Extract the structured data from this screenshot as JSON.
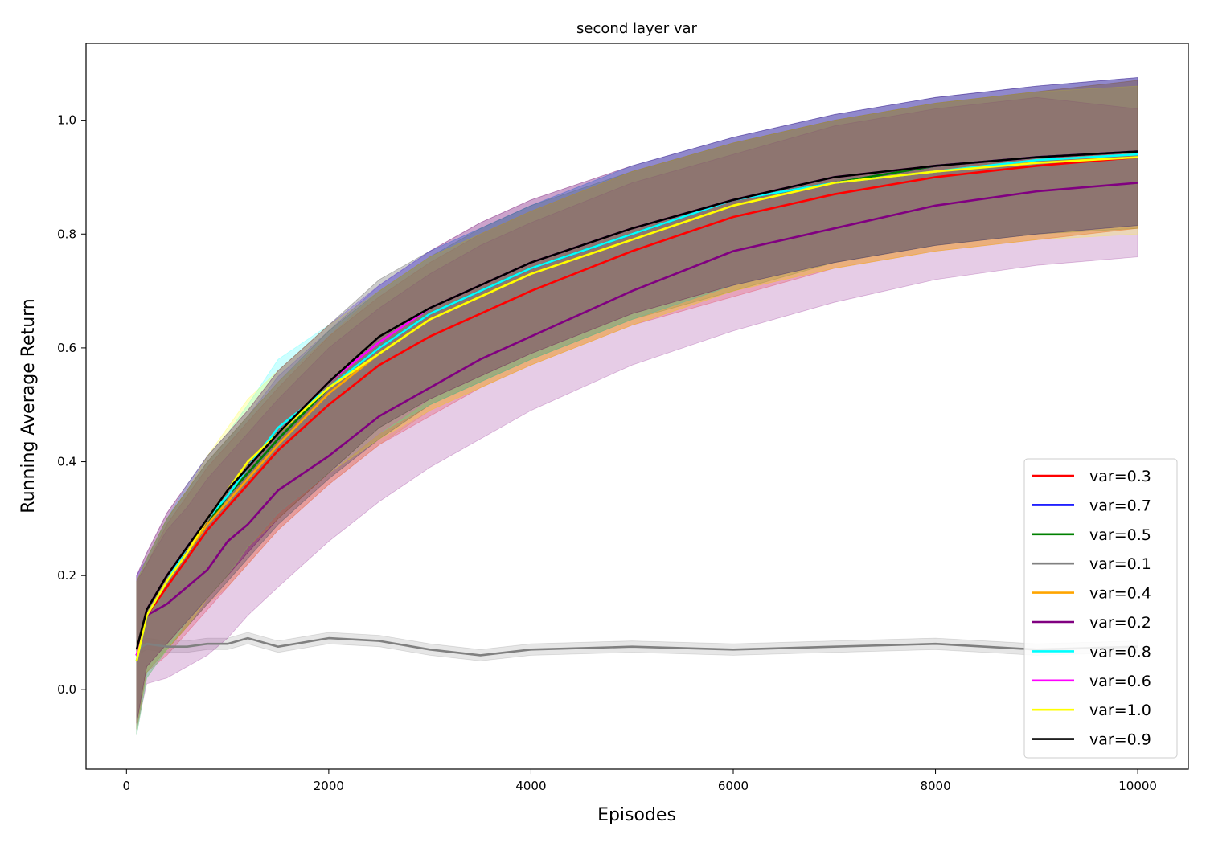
{
  "chart_data": {
    "type": "line",
    "title": "second layer var",
    "xlabel": "Episodes",
    "ylabel": "Running Average Return",
    "xlim": [
      -400,
      10500
    ],
    "ylim": [
      -0.14,
      1.135
    ],
    "x_ticks": [
      0,
      2000,
      4000,
      6000,
      8000,
      10000
    ],
    "y_ticks": [
      0.0,
      0.2,
      0.4,
      0.6,
      0.8,
      1.0
    ],
    "x_tick_labels": [
      "0",
      "2000",
      "4000",
      "6000",
      "8000",
      "10000"
    ],
    "y_tick_labels": [
      "0.0",
      "0.2",
      "0.4",
      "0.6",
      "0.8",
      "1.0"
    ],
    "grid": false,
    "legend_position": "lower-right",
    "x": [
      100,
      200,
      400,
      600,
      800,
      1000,
      1200,
      1500,
      2000,
      2500,
      3000,
      3500,
      4000,
      5000,
      6000,
      7000,
      8000,
      9000,
      10000
    ],
    "series": [
      {
        "name": "var=0.3",
        "color": "#ff0000",
        "values": [
          0.06,
          0.13,
          0.18,
          0.23,
          0.28,
          0.32,
          0.36,
          0.42,
          0.5,
          0.57,
          0.62,
          0.66,
          0.7,
          0.77,
          0.83,
          0.87,
          0.9,
          0.92,
          0.935
        ],
        "band": [
          [
            -0.07,
            0.19
          ],
          [
            0.03,
            0.22
          ],
          [
            0.06,
            0.29
          ],
          [
            0.1,
            0.34
          ],
          [
            0.14,
            0.39
          ],
          [
            0.18,
            0.43
          ],
          [
            0.22,
            0.47
          ],
          [
            0.28,
            0.53
          ],
          [
            0.36,
            0.62
          ],
          [
            0.43,
            0.69
          ],
          [
            0.48,
            0.75
          ],
          [
            0.53,
            0.8
          ],
          [
            0.57,
            0.84
          ],
          [
            0.64,
            0.91
          ],
          [
            0.69,
            0.96
          ],
          [
            0.74,
            1.0
          ],
          [
            0.77,
            1.03
          ],
          [
            0.79,
            1.05
          ],
          [
            0.81,
            1.07
          ]
        ]
      },
      {
        "name": "var=0.7",
        "color": "#0000ff",
        "values": [
          0.06,
          0.13,
          0.19,
          0.24,
          0.29,
          0.34,
          0.38,
          0.44,
          0.53,
          0.6,
          0.66,
          0.7,
          0.74,
          0.8,
          0.86,
          0.89,
          0.92,
          0.935,
          0.945
        ],
        "band": [
          [
            -0.08,
            0.2
          ],
          [
            0.02,
            0.23
          ],
          [
            0.07,
            0.3
          ],
          [
            0.11,
            0.35
          ],
          [
            0.15,
            0.4
          ],
          [
            0.19,
            0.44
          ],
          [
            0.23,
            0.48
          ],
          [
            0.29,
            0.55
          ],
          [
            0.37,
            0.63
          ],
          [
            0.44,
            0.71
          ],
          [
            0.5,
            0.77
          ],
          [
            0.54,
            0.81
          ],
          [
            0.58,
            0.85
          ],
          [
            0.65,
            0.92
          ],
          [
            0.71,
            0.97
          ],
          [
            0.75,
            1.01
          ],
          [
            0.78,
            1.04
          ],
          [
            0.8,
            1.06
          ],
          [
            0.815,
            1.075
          ]
        ]
      },
      {
        "name": "var=0.5",
        "color": "#008000",
        "values": [
          0.06,
          0.13,
          0.19,
          0.24,
          0.29,
          0.34,
          0.38,
          0.44,
          0.53,
          0.6,
          0.66,
          0.7,
          0.74,
          0.8,
          0.86,
          0.89,
          0.92,
          0.935,
          0.945
        ],
        "band": [
          [
            -0.07,
            0.19
          ],
          [
            0.03,
            0.23
          ],
          [
            0.07,
            0.3
          ],
          [
            0.11,
            0.35
          ],
          [
            0.15,
            0.4
          ],
          [
            0.19,
            0.44
          ],
          [
            0.23,
            0.48
          ],
          [
            0.29,
            0.54
          ],
          [
            0.37,
            0.63
          ],
          [
            0.44,
            0.7
          ],
          [
            0.5,
            0.76
          ],
          [
            0.54,
            0.81
          ],
          [
            0.58,
            0.85
          ],
          [
            0.65,
            0.91
          ],
          [
            0.7,
            0.96
          ],
          [
            0.75,
            1.0
          ],
          [
            0.78,
            1.03
          ],
          [
            0.8,
            1.05
          ],
          [
            0.81,
            1.07
          ]
        ]
      },
      {
        "name": "var=0.1",
        "color": "#808080",
        "values": [
          0.07,
          0.08,
          0.075,
          0.075,
          0.08,
          0.08,
          0.09,
          0.075,
          0.09,
          0.085,
          0.07,
          0.06,
          0.07,
          0.075,
          0.07,
          0.075,
          0.08,
          0.07,
          0.075
        ],
        "band": [
          [
            0.06,
            0.08
          ],
          [
            0.07,
            0.09
          ],
          [
            0.065,
            0.085
          ],
          [
            0.065,
            0.085
          ],
          [
            0.07,
            0.09
          ],
          [
            0.07,
            0.09
          ],
          [
            0.08,
            0.1
          ],
          [
            0.065,
            0.085
          ],
          [
            0.08,
            0.1
          ],
          [
            0.075,
            0.095
          ],
          [
            0.06,
            0.08
          ],
          [
            0.05,
            0.07
          ],
          [
            0.06,
            0.08
          ],
          [
            0.065,
            0.085
          ],
          [
            0.06,
            0.08
          ],
          [
            0.065,
            0.085
          ],
          [
            0.07,
            0.09
          ],
          [
            0.06,
            0.08
          ],
          [
            0.065,
            0.085
          ]
        ]
      },
      {
        "name": "var=0.4",
        "color": "#ffa500",
        "values": [
          0.06,
          0.13,
          0.19,
          0.24,
          0.29,
          0.33,
          0.37,
          0.43,
          0.52,
          0.59,
          0.65,
          0.69,
          0.73,
          0.79,
          0.85,
          0.89,
          0.91,
          0.93,
          0.94
        ],
        "band": [
          [
            -0.07,
            0.19
          ],
          [
            0.03,
            0.23
          ],
          [
            0.07,
            0.3
          ],
          [
            0.11,
            0.35
          ],
          [
            0.15,
            0.4
          ],
          [
            0.18,
            0.44
          ],
          [
            0.22,
            0.48
          ],
          [
            0.28,
            0.54
          ],
          [
            0.36,
            0.62
          ],
          [
            0.43,
            0.7
          ],
          [
            0.49,
            0.76
          ],
          [
            0.53,
            0.8
          ],
          [
            0.57,
            0.84
          ],
          [
            0.64,
            0.91
          ],
          [
            0.7,
            0.96
          ],
          [
            0.74,
            1.0
          ],
          [
            0.77,
            1.03
          ],
          [
            0.79,
            1.05
          ],
          [
            0.81,
            1.07
          ]
        ]
      },
      {
        "name": "var=0.2",
        "color": "#800080",
        "values": [
          0.06,
          0.13,
          0.15,
          0.18,
          0.21,
          0.26,
          0.29,
          0.35,
          0.41,
          0.48,
          0.53,
          0.58,
          0.62,
          0.7,
          0.77,
          0.81,
          0.85,
          0.875,
          0.89
        ],
        "band": [
          [
            -0.07,
            0.19
          ],
          [
            0.01,
            0.22
          ],
          [
            0.02,
            0.28
          ],
          [
            0.04,
            0.32
          ],
          [
            0.06,
            0.37
          ],
          [
            0.09,
            0.41
          ],
          [
            0.13,
            0.45
          ],
          [
            0.18,
            0.51
          ],
          [
            0.26,
            0.6
          ],
          [
            0.33,
            0.67
          ],
          [
            0.39,
            0.73
          ],
          [
            0.44,
            0.78
          ],
          [
            0.49,
            0.82
          ],
          [
            0.57,
            0.89
          ],
          [
            0.63,
            0.94
          ],
          [
            0.68,
            0.99
          ],
          [
            0.72,
            1.02
          ],
          [
            0.745,
            1.04
          ],
          [
            0.76,
            1.02
          ]
        ]
      },
      {
        "name": "var=0.8",
        "color": "#00ffff",
        "values": [
          0.05,
          0.13,
          0.19,
          0.25,
          0.3,
          0.34,
          0.39,
          0.46,
          0.53,
          0.6,
          0.66,
          0.7,
          0.74,
          0.8,
          0.86,
          0.89,
          0.91,
          0.93,
          0.94
        ],
        "band": [
          [
            -0.08,
            0.19
          ],
          [
            0.02,
            0.23
          ],
          [
            0.07,
            0.3
          ],
          [
            0.12,
            0.36
          ],
          [
            0.16,
            0.41
          ],
          [
            0.2,
            0.45
          ],
          [
            0.25,
            0.5
          ],
          [
            0.31,
            0.58
          ],
          [
            0.38,
            0.64
          ],
          [
            0.45,
            0.71
          ],
          [
            0.5,
            0.77
          ],
          [
            0.54,
            0.81
          ],
          [
            0.58,
            0.85
          ],
          [
            0.65,
            0.92
          ],
          [
            0.71,
            0.97
          ],
          [
            0.75,
            1.01
          ],
          [
            0.78,
            1.04
          ],
          [
            0.8,
            1.06
          ],
          [
            0.815,
            1.075
          ]
        ]
      },
      {
        "name": "var=0.6",
        "color": "#ff00ff",
        "values": [
          0.06,
          0.14,
          0.2,
          0.25,
          0.3,
          0.35,
          0.39,
          0.45,
          0.54,
          0.61,
          0.67,
          0.71,
          0.75,
          0.81,
          0.86,
          0.9,
          0.92,
          0.935,
          0.945
        ],
        "band": [
          [
            -0.06,
            0.2
          ],
          [
            0.04,
            0.24
          ],
          [
            0.08,
            0.31
          ],
          [
            0.12,
            0.36
          ],
          [
            0.16,
            0.41
          ],
          [
            0.2,
            0.45
          ],
          [
            0.24,
            0.49
          ],
          [
            0.3,
            0.56
          ],
          [
            0.38,
            0.64
          ],
          [
            0.45,
            0.71
          ],
          [
            0.51,
            0.77
          ],
          [
            0.55,
            0.82
          ],
          [
            0.59,
            0.86
          ],
          [
            0.66,
            0.92
          ],
          [
            0.71,
            0.97
          ],
          [
            0.75,
            1.01
          ],
          [
            0.78,
            1.04
          ],
          [
            0.8,
            1.06
          ],
          [
            0.815,
            1.075
          ]
        ]
      },
      {
        "name": "var=1.0",
        "color": "#ffff00",
        "values": [
          0.05,
          0.13,
          0.19,
          0.24,
          0.3,
          0.35,
          0.4,
          0.45,
          0.53,
          0.59,
          0.65,
          0.69,
          0.73,
          0.79,
          0.85,
          0.89,
          0.91,
          0.925,
          0.935
        ],
        "band": [
          [
            -0.08,
            0.19
          ],
          [
            0.02,
            0.23
          ],
          [
            0.07,
            0.3
          ],
          [
            0.11,
            0.35
          ],
          [
            0.16,
            0.41
          ],
          [
            0.2,
            0.46
          ],
          [
            0.25,
            0.51
          ],
          [
            0.3,
            0.56
          ],
          [
            0.38,
            0.64
          ],
          [
            0.44,
            0.7
          ],
          [
            0.49,
            0.76
          ],
          [
            0.53,
            0.8
          ],
          [
            0.57,
            0.84
          ],
          [
            0.64,
            0.91
          ],
          [
            0.7,
            0.96
          ],
          [
            0.74,
            1.0
          ],
          [
            0.77,
            1.03
          ],
          [
            0.79,
            1.05
          ],
          [
            0.8,
            1.06
          ]
        ]
      },
      {
        "name": "var=0.9",
        "color": "#000000",
        "values": [
          0.07,
          0.14,
          0.2,
          0.25,
          0.3,
          0.35,
          0.39,
          0.45,
          0.54,
          0.62,
          0.67,
          0.71,
          0.75,
          0.81,
          0.86,
          0.9,
          0.92,
          0.935,
          0.945
        ],
        "band": [
          [
            -0.06,
            0.2
          ],
          [
            0.04,
            0.24
          ],
          [
            0.08,
            0.31
          ],
          [
            0.12,
            0.36
          ],
          [
            0.16,
            0.41
          ],
          [
            0.2,
            0.45
          ],
          [
            0.24,
            0.49
          ],
          [
            0.3,
            0.56
          ],
          [
            0.38,
            0.64
          ],
          [
            0.46,
            0.72
          ],
          [
            0.51,
            0.77
          ],
          [
            0.55,
            0.82
          ],
          [
            0.59,
            0.86
          ],
          [
            0.66,
            0.92
          ],
          [
            0.71,
            0.97
          ],
          [
            0.75,
            1.01
          ],
          [
            0.78,
            1.04
          ],
          [
            0.8,
            1.06
          ],
          [
            0.815,
            1.075
          ]
        ]
      }
    ]
  }
}
